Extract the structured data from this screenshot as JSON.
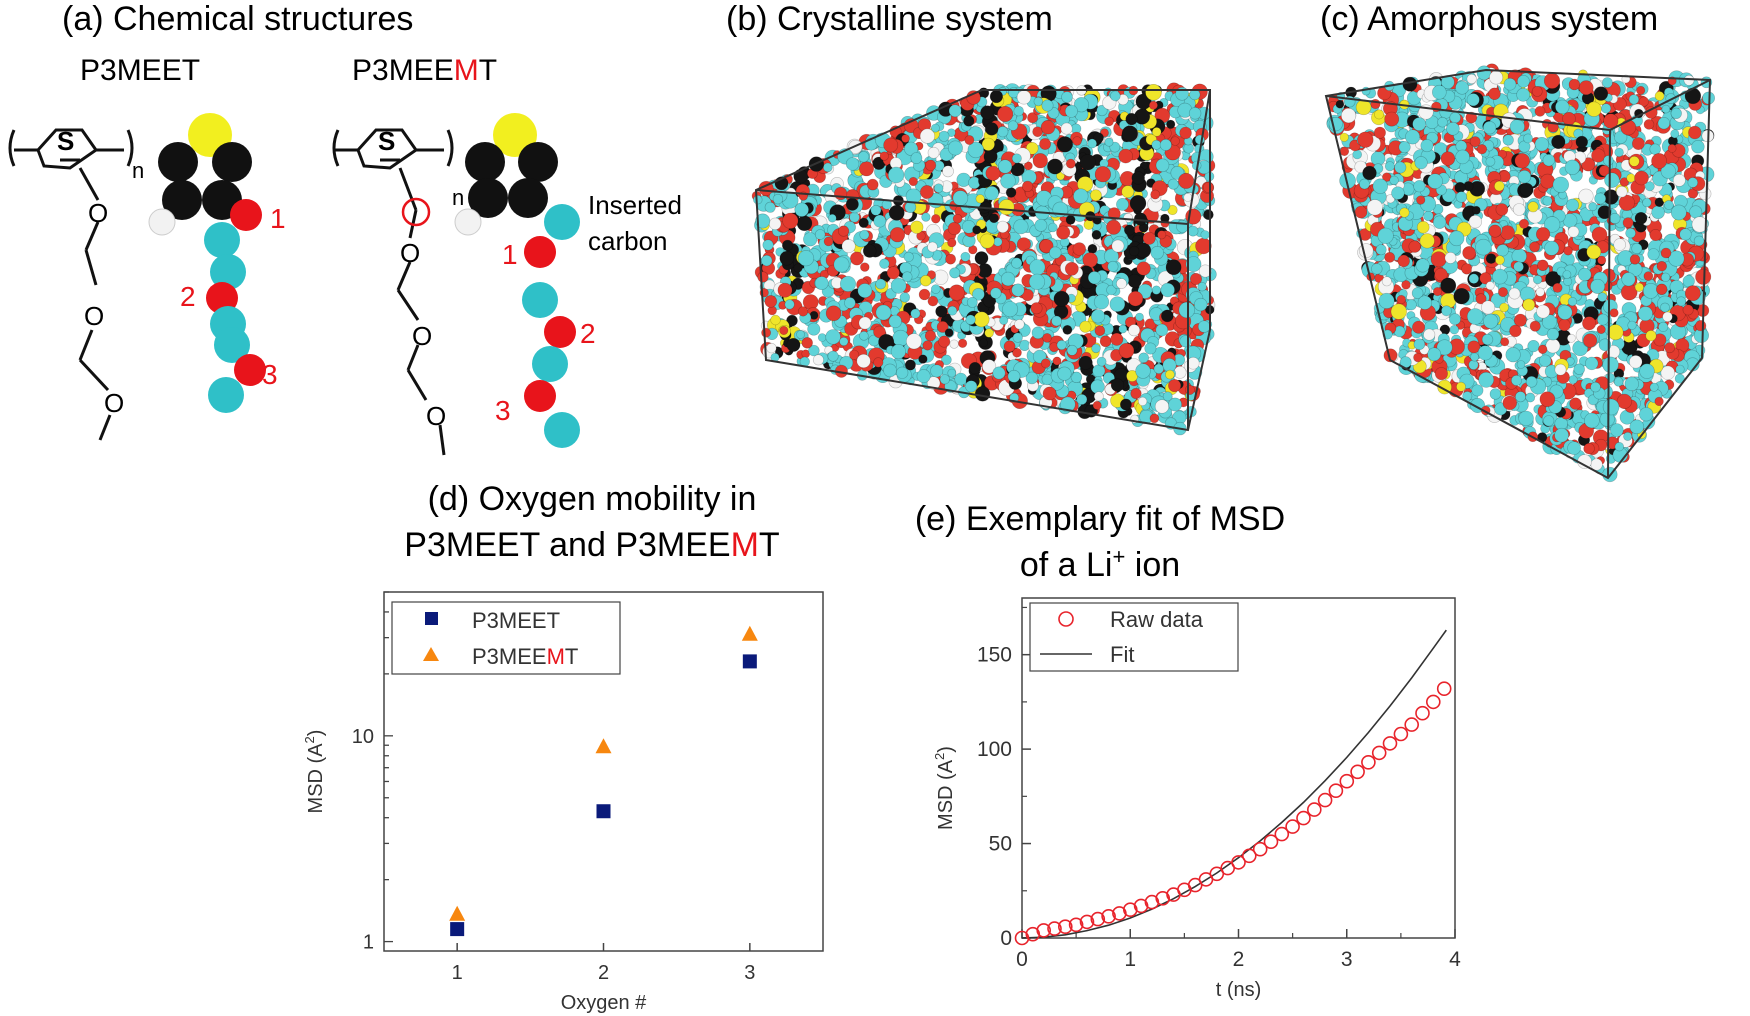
{
  "panel_a": {
    "title": "(a) Chemical structures",
    "mol1_name": "P3MEET",
    "mol2_name_prefix": "P3MEE",
    "mol2_name_highlight": "M",
    "mol2_name_suffix": "T",
    "s_label": "S",
    "o_label": "O",
    "n_label": "n",
    "oxygen_labels": [
      "1",
      "2",
      "3"
    ],
    "inserted_line1": "Inserted",
    "inserted_line2": "carbon",
    "colors": {
      "sulfur": "#f2ef1f",
      "ring_carbon": "#111111",
      "hydrogen": "#f2f2f2",
      "oxygen": "#e8141b",
      "chain_carbon": "#2fc0c8",
      "highlight": "#e8141b"
    }
  },
  "panel_b": {
    "title": "(b) Crystalline system"
  },
  "panel_c": {
    "title": "(c) Amorphous system"
  },
  "panel_d": {
    "title_line1": "(d) Oxygen mobility in",
    "title_line2_prefix": "P3MEET and P3MEE",
    "title_line2_highlight": "M",
    "title_line2_suffix": "T"
  },
  "panel_e": {
    "title_line1": "(e) Exemplary fit of MSD",
    "title_line2_prefix": "of a Li",
    "title_line2_sup": "+",
    "title_line2_suffix": " ion"
  },
  "chart_data": [
    {
      "id": "d",
      "type": "scatter",
      "xlabel": "Oxygen #",
      "ylabel": "MSD (A²)",
      "ylabel_main": "MSD (A",
      "ylabel_sup": "2",
      "ylabel_close": ")",
      "yscale": "log",
      "xlim": [
        0.5,
        3.5
      ],
      "ylim": [
        0.9,
        50
      ],
      "xticks": [
        1,
        2,
        3
      ],
      "yticks": [
        1,
        10
      ],
      "series": [
        {
          "name": "P3MEET",
          "marker": "square",
          "color": "#0a1a7a",
          "x": [
            1,
            2,
            3
          ],
          "y": [
            1.15,
            4.3,
            23
          ]
        },
        {
          "name": "P3MEEMT",
          "name_prefix": "P3MEE",
          "name_highlight": "M",
          "name_suffix": "T",
          "marker": "triangle",
          "color": "#f7870f",
          "x": [
            1,
            2,
            3
          ],
          "y": [
            1.35,
            8.8,
            31
          ]
        }
      ],
      "legend": "top-left"
    },
    {
      "id": "e",
      "type": "line",
      "xlabel": "t (ns)",
      "ylabel": "MSD (A²)",
      "ylabel_main": "MSD (A",
      "ylabel_sup": "2",
      "ylabel_close": ")",
      "xlim": [
        0,
        4
      ],
      "ylim": [
        0,
        180
      ],
      "xticks": [
        0,
        1,
        2,
        3,
        4
      ],
      "yticks": [
        0,
        50,
        100,
        150
      ],
      "series": [
        {
          "name": "Raw data",
          "marker": "circle-open",
          "color": "#e8232b",
          "x": [
            0.0,
            0.1,
            0.2,
            0.3,
            0.4,
            0.5,
            0.6,
            0.7,
            0.8,
            0.9,
            1.0,
            1.1,
            1.2,
            1.3,
            1.4,
            1.5,
            1.6,
            1.7,
            1.8,
            1.9,
            2.0,
            2.1,
            2.2,
            2.3,
            2.4,
            2.5,
            2.6,
            2.7,
            2.8,
            2.9,
            3.0,
            3.1,
            3.2,
            3.3,
            3.4,
            3.5,
            3.6,
            3.7,
            3.8,
            3.9
          ],
          "y": [
            0,
            2,
            4,
            5,
            6,
            7,
            8.5,
            10,
            11.5,
            13,
            15,
            17,
            19,
            21,
            23,
            25.5,
            28,
            31,
            34,
            37,
            40,
            43.5,
            47,
            51,
            55,
            59,
            63.5,
            68,
            73,
            78,
            83,
            88,
            93,
            98,
            103,
            108,
            113,
            119,
            125,
            132
          ]
        },
        {
          "name": "Fit",
          "marker": "line",
          "color": "#333333",
          "x": [
            0,
            0.2,
            0.4,
            0.6,
            0.8,
            1.0,
            1.2,
            1.4,
            1.6,
            1.8,
            2.0,
            2.2,
            2.4,
            2.6,
            2.8,
            3.0,
            3.2,
            3.4,
            3.6,
            3.8,
            3.92
          ],
          "y": [
            0,
            0.4,
            1.7,
            3.9,
            6.8,
            10.6,
            15.3,
            20.8,
            27.2,
            34.4,
            42.5,
            51.4,
            61.2,
            71.8,
            83.3,
            95.6,
            108.8,
            122.8,
            137.7,
            153.4,
            163
          ]
        }
      ],
      "legend": "top-left"
    }
  ]
}
